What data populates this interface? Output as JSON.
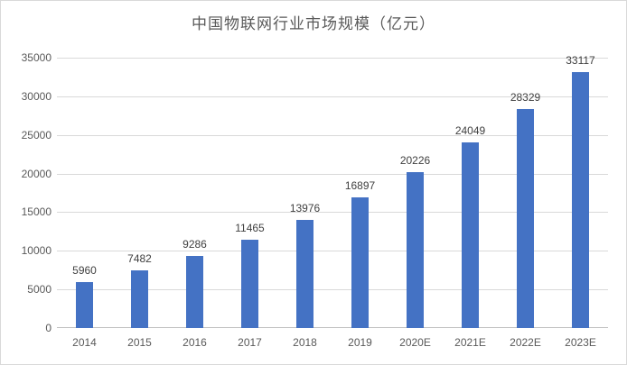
{
  "title": "中国物联网行业市场规模（亿元）",
  "colors": {
    "bar": "#4472c4",
    "gridline": "#d9d9d9",
    "axis_line": "#bfbfbf",
    "title_text": "#595959",
    "axis_text": "#595959",
    "value_label_text": "#404040",
    "chart_border": "#d9d9d9",
    "background": "#ffffff"
  },
  "chart_data": {
    "type": "bar",
    "title": "中国物联网行业市场规模（亿元）",
    "categories": [
      "2014",
      "2015",
      "2016",
      "2017",
      "2018",
      "2019",
      "2020E",
      "2021E",
      "2022E",
      "2023E"
    ],
    "values": [
      5960,
      7482,
      9286,
      11465,
      13976,
      16897,
      20226,
      24049,
      28329,
      33117
    ],
    "value_labels": [
      "5960",
      "7482",
      "9286",
      "11465",
      "13976",
      "16897",
      "20226",
      "24049",
      "28329",
      "33117"
    ],
    "xlabel": "",
    "ylabel": "",
    "ylim": [
      0,
      35000
    ],
    "yticks": [
      0,
      5000,
      10000,
      15000,
      20000,
      25000,
      30000,
      35000
    ],
    "ytick_labels": [
      "0",
      "5000",
      "10000",
      "15000",
      "20000",
      "25000",
      "30000",
      "35000"
    ],
    "grid": true,
    "legend_position": "none",
    "data_labels": true
  }
}
